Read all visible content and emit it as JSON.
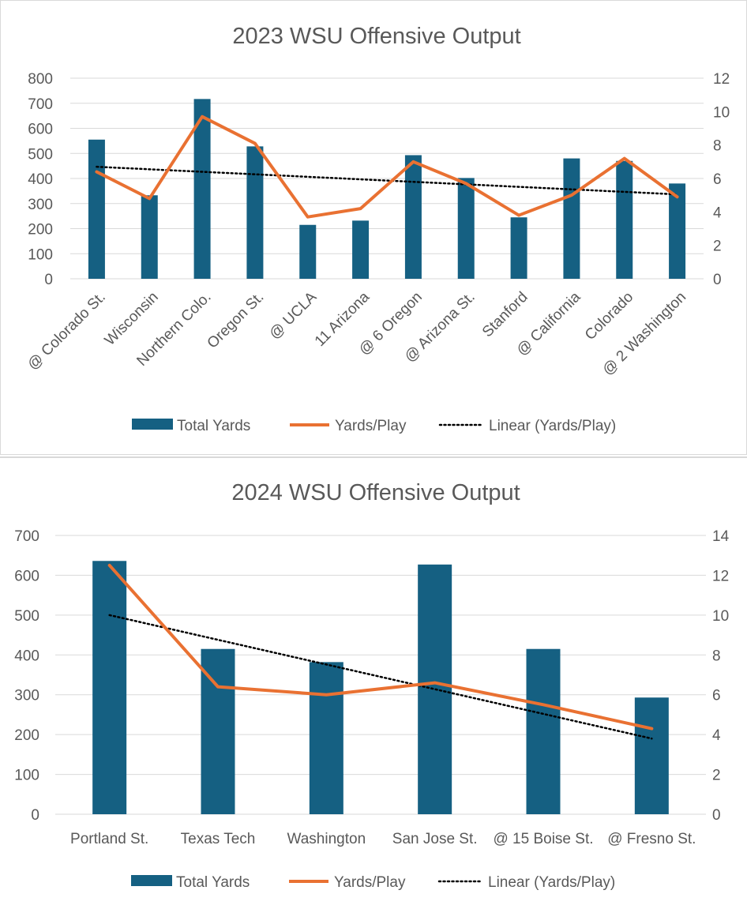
{
  "chart_data": [
    {
      "type": "bar",
      "title": "2023 WSU Offensive Output",
      "categories": [
        "@ Colorado St.",
        "Wisconsin",
        "Northern Colo.",
        "Oregon St.",
        "@ UCLA",
        "11 Arizona",
        "@ 6 Oregon",
        "@ Arizona St.",
        "Stanford",
        "@ California",
        "Colorado",
        "@ 2 Washington"
      ],
      "series": [
        {
          "name": "Total Yards",
          "kind": "bar",
          "axis": "primary",
          "color": "#156082",
          "values": [
            555,
            333,
            717,
            528,
            215,
            232,
            493,
            402,
            245,
            480,
            470,
            380
          ]
        },
        {
          "name": "Yards/Play",
          "kind": "line",
          "axis": "secondary",
          "color": "#E97132",
          "values": [
            6.4,
            4.8,
            9.7,
            8.1,
            3.7,
            4.2,
            7.0,
            5.7,
            3.8,
            5.0,
            7.2,
            4.9
          ]
        },
        {
          "name": "Linear (Yards/Play)",
          "kind": "trendline",
          "axis": "secondary",
          "color": "#000000",
          "values": [
            6.7,
            6.55,
            6.4,
            6.25,
            6.1,
            5.95,
            5.8,
            5.65,
            5.5,
            5.35,
            5.2,
            5.05
          ]
        }
      ],
      "y_primary": {
        "min": 0,
        "max": 800,
        "ticks": [
          0,
          100,
          200,
          300,
          400,
          500,
          600,
          700,
          800
        ]
      },
      "y_secondary": {
        "min": 0,
        "max": 12,
        "ticks": [
          0,
          2,
          4,
          6,
          8,
          10,
          12
        ]
      },
      "x_label_rotation": "rotated 45 degrees",
      "legend": {
        "placement": "bottom",
        "entries": [
          "Total Yards",
          "Yards/Play",
          "Linear (Yards/Play)"
        ]
      },
      "gridlines": true
    },
    {
      "type": "bar",
      "title": "2024 WSU Offensive Output",
      "categories": [
        "Portland St.",
        "Texas Tech",
        "Washington",
        "San Jose St.",
        "@ 15 Boise St.",
        "@ Fresno St."
      ],
      "series": [
        {
          "name": "Total Yards",
          "kind": "bar",
          "axis": "primary",
          "color": "#156082",
          "values": [
            636,
            415,
            382,
            627,
            415,
            293
          ]
        },
        {
          "name": "Yards/Play",
          "kind": "line",
          "axis": "secondary",
          "color": "#E97132",
          "values": [
            12.5,
            6.4,
            6.0,
            6.6,
            5.5,
            4.3
          ]
        },
        {
          "name": "Linear (Yards/Play)",
          "kind": "trendline",
          "axis": "secondary",
          "color": "#000000",
          "values": [
            10.0,
            8.76,
            7.52,
            6.28,
            5.04,
            3.8
          ]
        }
      ],
      "y_primary": {
        "min": 0,
        "max": 700,
        "ticks": [
          0,
          100,
          200,
          300,
          400,
          500,
          600,
          700
        ]
      },
      "y_secondary": {
        "min": 0,
        "max": 14,
        "ticks": [
          0,
          2,
          4,
          6,
          8,
          10,
          12,
          14
        ]
      },
      "x_label_rotation": "horizontal",
      "legend": {
        "placement": "bottom",
        "entries": [
          "Total Yards",
          "Yards/Play",
          "Linear (Yards/Play)"
        ]
      },
      "gridlines": true
    }
  ]
}
